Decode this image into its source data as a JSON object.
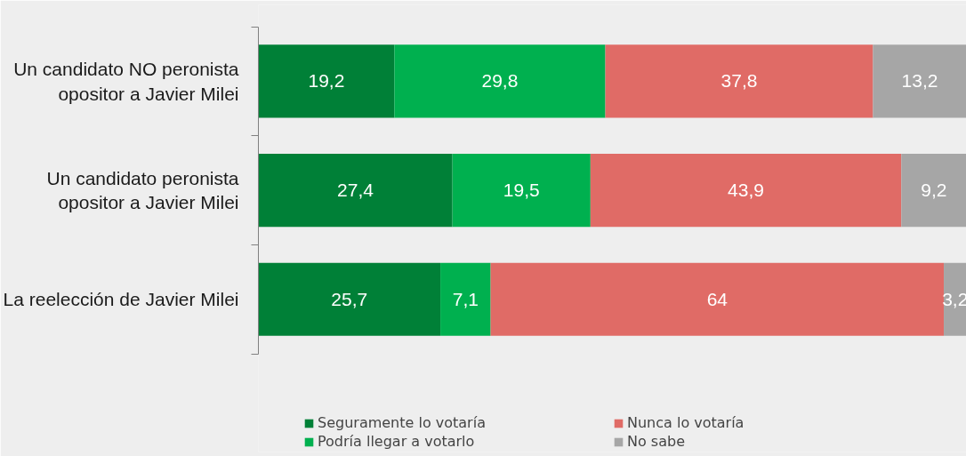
{
  "chart_data": {
    "type": "bar",
    "orientation": "horizontal",
    "stacked": true,
    "categories": [
      "Un candidato NO peronista opositor a Javier Milei",
      "Un candidato peronista opositor a Javier Milei",
      "La reelección de Javier Milei"
    ],
    "series": [
      {
        "name": "Seguramente lo votaría",
        "color": "#008037",
        "values": [
          19.2,
          27.4,
          25.7
        ],
        "value_labels": [
          "19,2",
          "27,4",
          "25,7"
        ]
      },
      {
        "name": "Podría llegar a votarlo",
        "color": "#00b04f",
        "values": [
          29.8,
          19.5,
          7.1
        ],
        "value_labels": [
          "29,8",
          "19,5",
          "7,1"
        ]
      },
      {
        "name": "Nunca lo votaría",
        "color": "#e06b66",
        "values": [
          37.8,
          43.9,
          64
        ],
        "value_labels": [
          "37,8",
          "43,9",
          "64"
        ]
      },
      {
        "name": "No sabe",
        "color": "#a6a6a6",
        "values": [
          13.2,
          9.2,
          3.2
        ],
        "value_labels": [
          "13,2",
          "9,2",
          "3,2"
        ]
      }
    ],
    "legend": "bottom"
  }
}
